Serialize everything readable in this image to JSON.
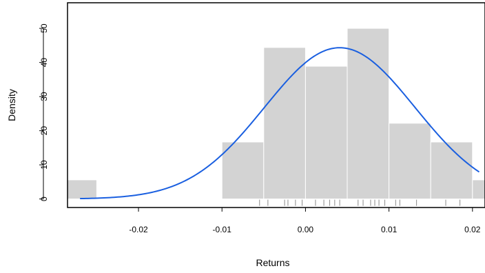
{
  "chart_data": {
    "type": "histogram",
    "xlabel": "Returns",
    "ylabel": "Density",
    "xlim": [
      -0.0285,
      0.0215
    ],
    "ylim": [
      -2.5,
      57.5
    ],
    "x_ticks": [
      -0.02,
      -0.01,
      0.0,
      0.01,
      0.02
    ],
    "x_tick_labels": [
      "-0.02",
      "-0.01",
      "0.00",
      "0.01",
      "0.02"
    ],
    "y_ticks": [
      0,
      10,
      20,
      30,
      40,
      50
    ],
    "y_tick_labels": [
      "0",
      "10",
      "20",
      "30",
      "40",
      "50"
    ],
    "bins": [
      {
        "x0": -0.03,
        "x1": -0.025,
        "density": 5.6
      },
      {
        "x0": -0.025,
        "x1": -0.02,
        "density": 0
      },
      {
        "x0": -0.02,
        "x1": -0.015,
        "density": 0
      },
      {
        "x0": -0.015,
        "x1": -0.01,
        "density": 0
      },
      {
        "x0": -0.01,
        "x1": -0.005,
        "density": 16.7
      },
      {
        "x0": -0.005,
        "x1": 0.0,
        "density": 44.4
      },
      {
        "x0": 0.0,
        "x1": 0.005,
        "density": 38.9
      },
      {
        "x0": 0.005,
        "x1": 0.01,
        "density": 50.0
      },
      {
        "x0": 0.01,
        "x1": 0.015,
        "density": 22.2
      },
      {
        "x0": 0.015,
        "x1": 0.02,
        "density": 16.7
      },
      {
        "x0": 0.02,
        "x1": 0.025,
        "density": 5.6
      }
    ],
    "density_curve": {
      "type": "normal",
      "mean": 0.0041,
      "sd": 0.009,
      "x_range": [
        -0.027,
        0.0208
      ],
      "color": "#1a5fe0"
    },
    "rug": [
      -0.0055,
      -0.0045,
      -0.0025,
      -0.0021,
      -0.0012,
      -0.0004,
      0.0012,
      0.0022,
      0.0029,
      0.0035,
      0.0041,
      0.0063,
      0.0069,
      0.0078,
      0.0083,
      0.0088,
      0.0095,
      0.0108,
      0.0113,
      0.0133,
      0.0168,
      0.0185
    ],
    "colors": {
      "bar_fill": "#d3d3d3",
      "bar_stroke": "#ffffff",
      "curve": "#1a5fe0",
      "axis": "#000000",
      "rug": "#8a8a8a"
    },
    "grid": false,
    "legend": "none"
  }
}
